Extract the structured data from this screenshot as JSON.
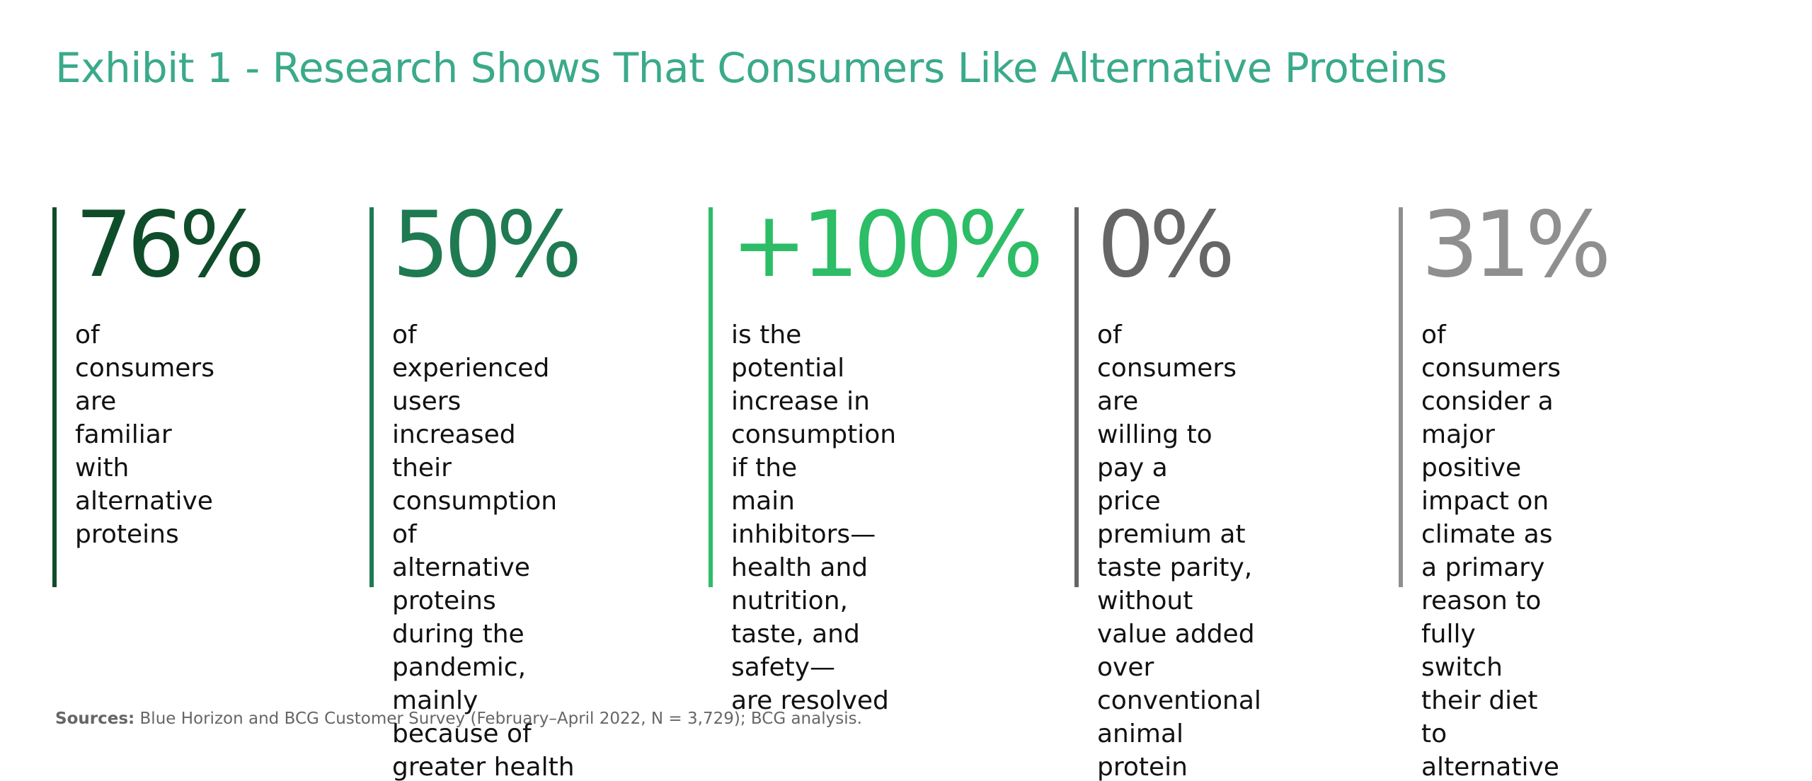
{
  "title": "Exhibit 1 - Research Shows That Consumers Like Alternative Proteins",
  "stats": [
    {
      "value": "76%",
      "color": "#0f4d2a",
      "description": "of consumers are\nfamiliar with\nalternative proteins"
    },
    {
      "value": "50%",
      "color": "#1f7a52",
      "description": "of experienced users\nincreased their\nconsumption of\nalternative proteins\nduring the pandemic,\nmainly because of\ngreater health\nconsciousness"
    },
    {
      "value": "+100%",
      "color": "#2cbd66",
      "description": "is the potential\nincrease in\nconsumption if the\nmain inhibitors—\nhealth and nutrition,\ntaste, and safety—\nare resolved"
    },
    {
      "value": "0%",
      "color": "#666666",
      "description": "of consumers are\nwilling to pay a\nprice premium at\ntaste parity, without\nvalue added over\nconventional\nanimal protein"
    },
    {
      "value": "31%",
      "color": "#8f8f8f",
      "description": "of consumers\nconsider a major\npositive impact on\nclimate as a primary\nreason to fully\nswitch  their diet to\nalternative proteins"
    }
  ],
  "sources": {
    "label": "Sources:",
    "text": " Blue Horizon and BCG Customer Survey (February–April 2022, N = 3,729); BCG analysis."
  }
}
